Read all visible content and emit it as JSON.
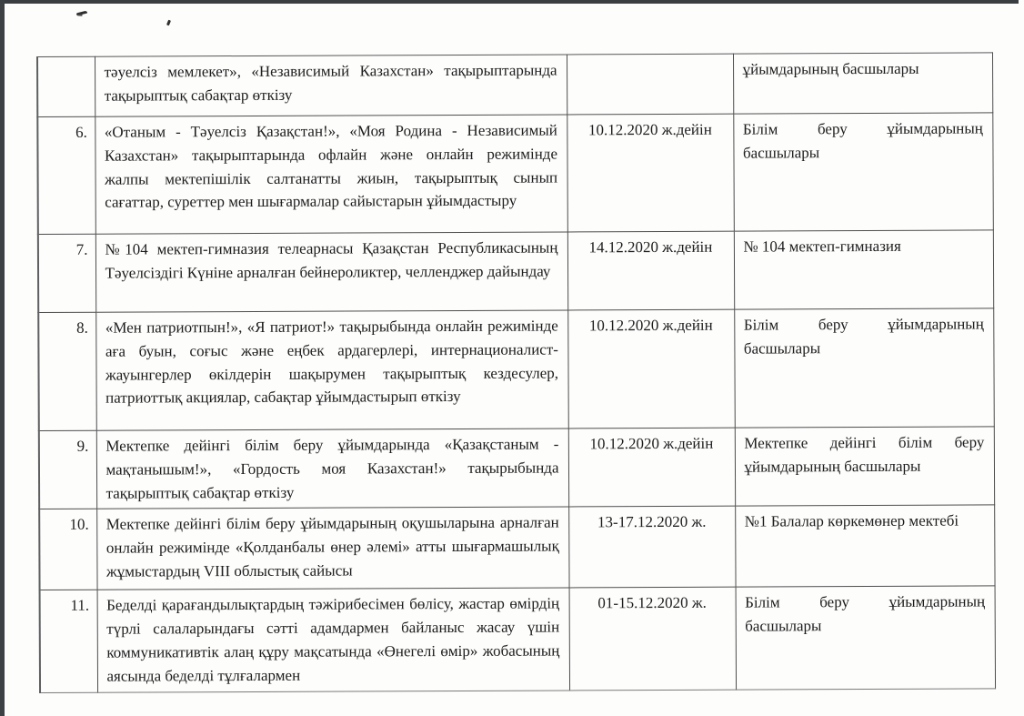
{
  "colors": {
    "paper": "#fdfdfc",
    "ink": "#1d1d1d",
    "table_border": "#4d4d4d",
    "scanner_edge": "#3d4143"
  },
  "table": {
    "rows": [
      {
        "num": "",
        "activity": "тәуелсіз мемлекет», «Независимый Казахстан» тақырыптарында тақырыптық сабақтар өткізу",
        "date": "",
        "responsible": "ұйымдарының басшылары"
      },
      {
        "num": "6.",
        "activity": "«Отаным - Тәуелсіз Қазақстан!», «Моя Родина - Независимый Казахстан» тақырыптарында офлайн және онлайн режимінде жалпы мектепішілік салтанатты жиын, тақырыптық сынып сағаттар, суреттер мен шығармалар сайыстарын ұйымдастыру",
        "date": "10.12.2020 ж.дейін",
        "responsible": "Білім беру ұйымдарының басшылары"
      },
      {
        "num": "7.",
        "activity": "№104 мектеп-гимназия телеарнасы Қазақстан Республикасының Тәуелсіздігі Күніне арналған бейнероликтер, челленджер дайындау",
        "date": "14.12.2020 ж.дейін",
        "responsible": "№ 104 мектеп-гимназия"
      },
      {
        "num": "8.",
        "activity": "«Мен патриотпын!», «Я патриот!» тақырыбында онлайн режимінде аға буын, соғыс және еңбек ардагерлері, интернационалист-жауынгерлер өкілдерін шақырумен тақырыптық кездесулер, патриоттық акциялар, сабақтар ұйымдастырып өткізу",
        "date": "10.12.2020 ж.дейін",
        "responsible": "Білім беру ұйымдарының басшылары"
      },
      {
        "num": "9.",
        "activity": "Мектепке дейінгі білім беру ұйымдарында «Қазақстаным - мақтанышым!», «Гордость моя Казахстан!» тақырыбында тақырыптық сабақтар өткізу",
        "date": "10.12.2020 ж.дейін",
        "responsible": "Мектепке дейінгі білім беру ұйымдарының басшылары"
      },
      {
        "num": "10.",
        "activity": "Мектепке дейінгі білім беру ұйымдарының оқушыларына арналған онлайн режимінде «Қолданбалы өнер әлемі» атты шығармашылық жұмыстардың VIII облыстық сайысы",
        "date": "13-17.12.2020 ж.",
        "responsible": "№1 Балалар көркемөнер мектебі"
      },
      {
        "num": "11.",
        "activity": "Беделді қарағандылықтардың тәжірибесімен бөлісу, жастар өмірдің түрлі салаларындағы сәтті адамдармен байланыс жасау үшін коммуникативтік алаң құру мақсатында «Өнегелі өмір» жобасының аясында беделді тұлғалармен",
        "date": "01-15.12.2020 ж.",
        "responsible": "Білім беру ұйымдарының басшылары"
      }
    ]
  }
}
